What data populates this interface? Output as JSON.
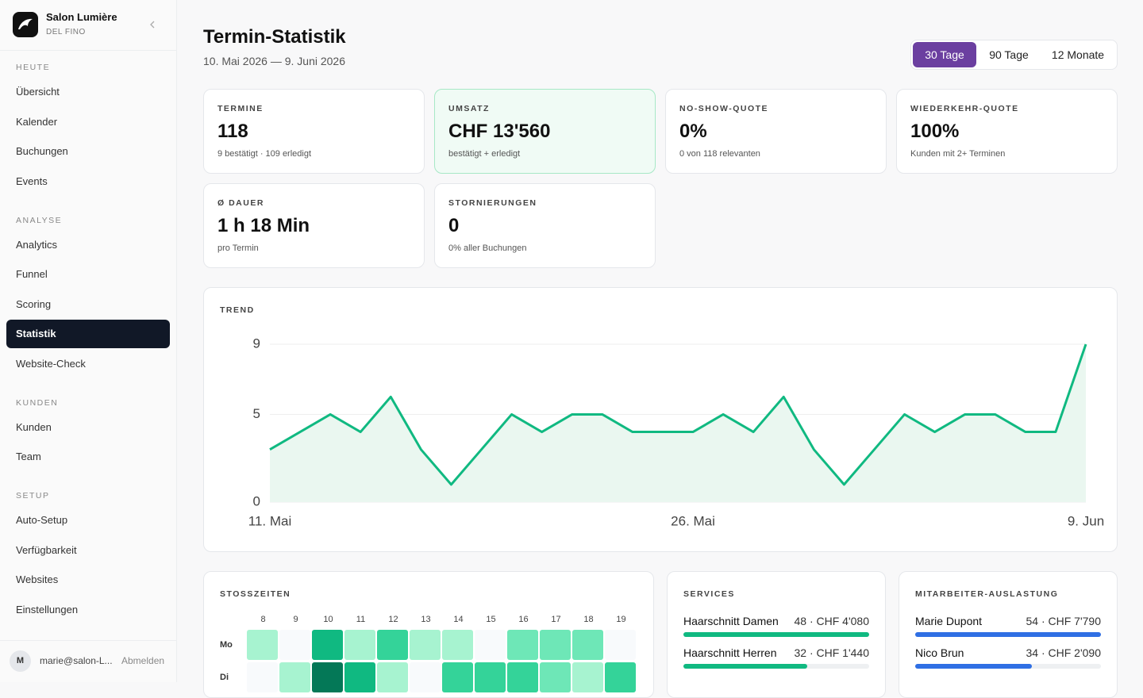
{
  "sidebar": {
    "brand": "Salon Lumière",
    "sub": "DEL FINO",
    "sections": [
      {
        "title": "HEUTE",
        "items": [
          {
            "label": "Übersicht"
          },
          {
            "label": "Kalender"
          },
          {
            "label": "Buchungen"
          },
          {
            "label": "Events"
          }
        ]
      },
      {
        "title": "ANALYSE",
        "items": [
          {
            "label": "Analytics"
          },
          {
            "label": "Funnel"
          },
          {
            "label": "Scoring"
          },
          {
            "label": "Statistik",
            "active": true
          },
          {
            "label": "Website-Check"
          }
        ]
      },
      {
        "title": "KUNDEN",
        "items": [
          {
            "label": "Kunden"
          },
          {
            "label": "Team"
          }
        ]
      },
      {
        "title": "SETUP",
        "items": [
          {
            "label": "Auto-Setup"
          },
          {
            "label": "Verfügbarkeit"
          },
          {
            "label": "Websites"
          },
          {
            "label": "Einstellungen"
          }
        ]
      }
    ],
    "user": {
      "avatar": "M",
      "email": "marie@salon-L...",
      "logout": "Abmelden"
    }
  },
  "header": {
    "title": "Termin-Statistik",
    "range": "10. Mai 2026 — 9. Juni 2026"
  },
  "periods": {
    "options": [
      "30 Tage",
      "90 Tage",
      "12 Monate"
    ],
    "selected": 0
  },
  "kpis": [
    {
      "label": "TERMINE",
      "value": "118",
      "note": "9 bestätigt · 109 erledigt"
    },
    {
      "label": "UMSATZ",
      "value": "CHF 13'560",
      "note": "bestätigt + erledigt",
      "highlight": true
    },
    {
      "label": "NO-SHOW-QUOTE",
      "value": "0%",
      "note": "0 von 118 relevanten"
    },
    {
      "label": "WIEDERKEHR-QUOTE",
      "value": "100%",
      "note": "Kunden mit 2+ Terminen"
    },
    {
      "label": "Ø DAUER",
      "value": "1 h 18 Min",
      "note": "pro Termin"
    },
    {
      "label": "STORNIERUNGEN",
      "value": "0",
      "note": "0% aller Buchungen"
    }
  ],
  "chart_data": {
    "type": "area",
    "title": "TREND",
    "categories": [
      "11. Mai",
      null,
      null,
      null,
      null,
      null,
      null,
      null,
      null,
      null,
      null,
      null,
      null,
      null,
      "26. Mai",
      null,
      null,
      null,
      null,
      null,
      null,
      null,
      null,
      null,
      null,
      null,
      null,
      "9. Jun"
    ],
    "values": [
      3,
      4,
      5,
      4,
      6,
      3,
      1,
      3,
      5,
      4,
      5,
      5,
      4,
      4,
      4,
      5,
      4,
      6,
      3,
      1,
      3,
      5,
      4,
      5,
      5,
      4,
      4,
      9
    ],
    "color": "#10b981",
    "fill": "#eaf7f0",
    "ylim": [
      0,
      9
    ],
    "yticks": [
      0,
      5,
      9
    ],
    "grid": true
  },
  "heatmap": {
    "title": "STOSSZEITEN",
    "hours": [
      8,
      9,
      10,
      11,
      12,
      13,
      14,
      15,
      16,
      17,
      18,
      19
    ],
    "days": [
      "Mo",
      "Di"
    ],
    "values": [
      [
        1,
        0,
        4,
        1,
        3,
        1,
        1,
        0,
        2,
        2,
        2,
        0
      ],
      [
        0,
        1,
        5,
        4,
        1,
        0,
        3,
        3,
        3,
        2,
        1,
        3
      ]
    ],
    "max": 5
  },
  "services": {
    "title": "SERVICES",
    "color": "#10b981",
    "items": [
      {
        "name": "Haarschnitt Damen",
        "value": 48,
        "value_label": "48 · CHF 4'080"
      },
      {
        "name": "Haarschnitt Herren",
        "value": 32,
        "value_label": "32 · CHF 1'440"
      }
    ]
  },
  "staff": {
    "title": "MITARBEITER-AUSLASTUNG",
    "color": "#2f6fe4",
    "items": [
      {
        "name": "Marie Dupont",
        "value": 54,
        "value_label": "54 · CHF 7'790"
      },
      {
        "name": "Nico Brun",
        "value": 34,
        "value_label": "34 · CHF 2'090"
      }
    ]
  }
}
